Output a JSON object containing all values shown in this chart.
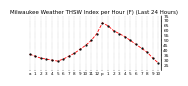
{
  "title": "Milwaukee Weather THSW Index per Hour (F) (Last 24 Hours)",
  "title_fontsize": 4.0,
  "background_color": "#ffffff",
  "plot_bg_color": "#ffffff",
  "line_color": "#ff0000",
  "line_width": 0.6,
  "marker": ".",
  "marker_color": "#000000",
  "marker_size": 1.2,
  "grid_color": "#999999",
  "grid_linewidth": 0.3,
  "ylim": [
    20,
    75
  ],
  "yticks": [
    25,
    30,
    35,
    40,
    45,
    50,
    55,
    60,
    65,
    70,
    75
  ],
  "ytick_fontsize": 3.2,
  "xtick_fontsize": 3.0,
  "hours": [
    0,
    1,
    2,
    3,
    4,
    5,
    6,
    7,
    8,
    9,
    10,
    11,
    12,
    13,
    14,
    15,
    16,
    17,
    18,
    19,
    20,
    21,
    22,
    23
  ],
  "xlabels": [
    "a",
    "1",
    "2",
    "3",
    "4",
    "5",
    "6",
    "7",
    "8",
    "9",
    "10",
    "11",
    "12",
    "p",
    "1",
    "2",
    "3",
    "4",
    "5",
    "6",
    "7",
    "8",
    "9",
    "10"
  ],
  "values": [
    36,
    34,
    32,
    31,
    30,
    29,
    31,
    34,
    37,
    41,
    45,
    50,
    57,
    68,
    65,
    60,
    57,
    54,
    50,
    46,
    42,
    38,
    32,
    27
  ]
}
